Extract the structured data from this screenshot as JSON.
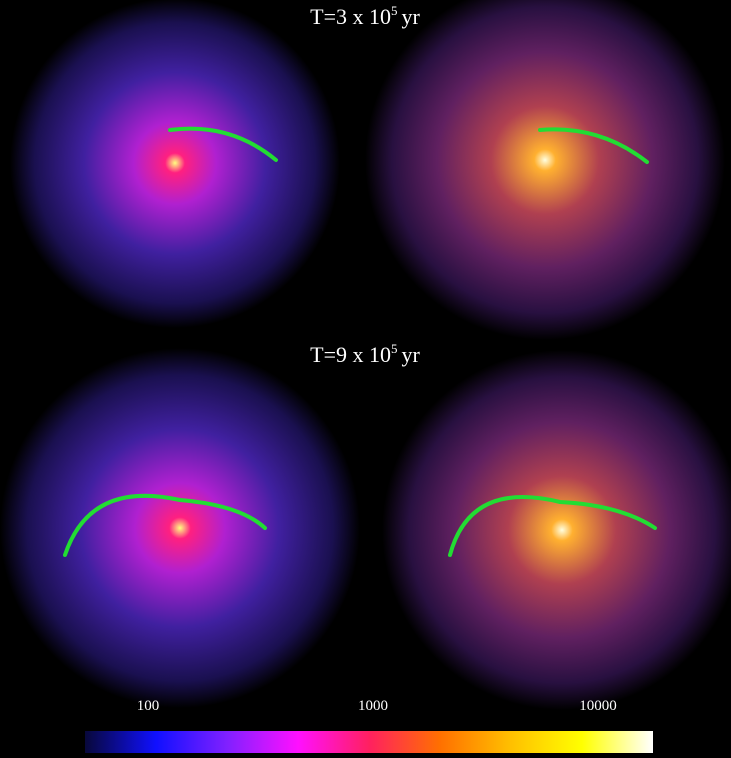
{
  "panels": [
    {
      "title": {
        "prefix": "T=3 x 10",
        "exponent": "5",
        "suffix": "yr"
      }
    },
    {
      "title": {
        "prefix": "T=9 x 10",
        "exponent": "5",
        "suffix": "yr"
      }
    }
  ],
  "colorbar": {
    "log": true,
    "lim": [
      52.5,
      17550
    ],
    "ticks": [
      100,
      1000,
      10000
    ],
    "colormap": [
      "#08083a",
      "#1010ff",
      "#8020ff",
      "#ff10ff",
      "#ff2060",
      "#ff7000",
      "#ffc000",
      "#ffff00",
      "#ffffff"
    ]
  }
}
